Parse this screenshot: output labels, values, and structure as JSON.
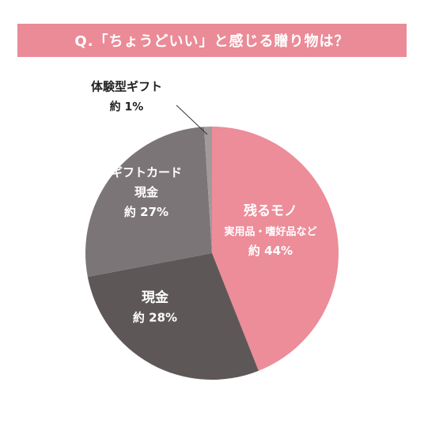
{
  "header": {
    "title": "Q.「ちょうどいい」と感じる贈り物は？"
  },
  "chart_data": {
    "type": "pie",
    "title": "Q.「ちょうどいい」と感じる贈り物は？",
    "slices": [
      {
        "label_lines": [
          "残るモノ",
          "実用品・嗜好品など"
        ],
        "value_text": "約 44%",
        "value": 44,
        "color": "#ec8d99",
        "text_color": "#ffffff"
      },
      {
        "label_lines": [
          "現金"
        ],
        "value_text": "約 28%",
        "value": 28,
        "color": "#5e5758",
        "text_color": "#ffffff"
      },
      {
        "label_lines": [
          "ギフトカード",
          "現金"
        ],
        "value_text": "約 27%",
        "value": 27,
        "color": "#7c7577",
        "text_color": "#ffffff"
      },
      {
        "label_lines": [
          "体験型ギフト"
        ],
        "value_text": "約 1%",
        "value": 1,
        "color": "#a09a9b",
        "text_color": "#222222"
      }
    ]
  }
}
